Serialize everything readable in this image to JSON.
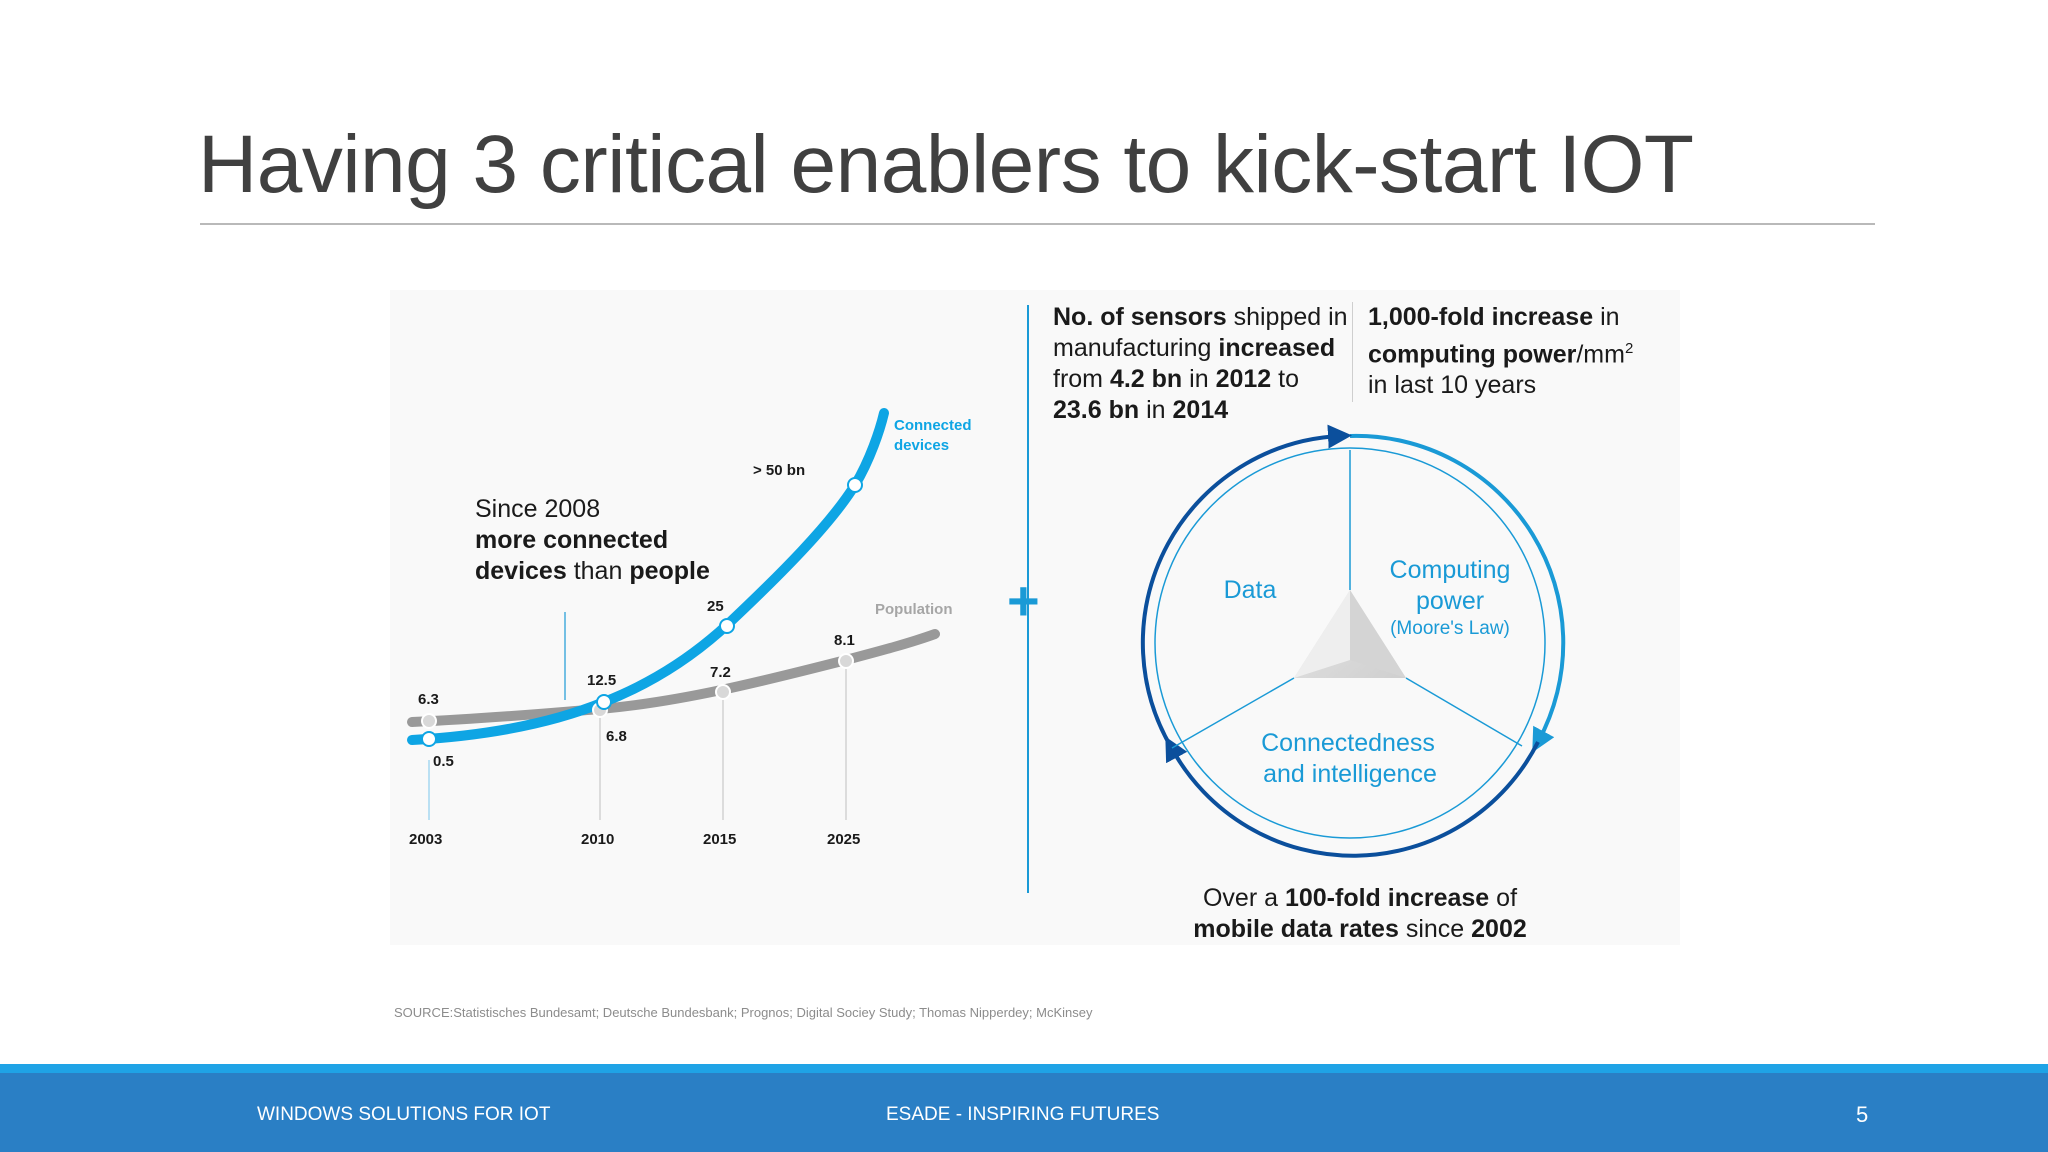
{
  "slide": {
    "title": "Having 3 critical enablers to kick-start IOT"
  },
  "growth_chart": {
    "since_line1": "Since 2008",
    "since_line2": "more connected",
    "since_line3a": "devices",
    "since_line3b": " than ",
    "since_line3c": "people",
    "connected_label_1": "Connected",
    "connected_label_2": "devices",
    "population_label": "Population",
    "over_label": "> 50 bn",
    "connected_values": [
      "0.5",
      "12.5",
      "25"
    ],
    "population_values": [
      "6.3",
      "6.8",
      "7.2",
      "8.1"
    ],
    "years": [
      "2003",
      "2010",
      "2015",
      "2025"
    ],
    "connected_color": "#0ea5e4",
    "population_color": "#999999"
  },
  "chart_data": {
    "type": "line",
    "x": [
      "2003",
      "2010",
      "2015",
      "2025"
    ],
    "series": [
      {
        "name": "Connected devices",
        "values": [
          0.5,
          12.5,
          25,
          50
        ]
      },
      {
        "name": "Population",
        "values": [
          6.3,
          6.8,
          7.2,
          8.1
        ]
      }
    ]
  },
  "plus_sign": "+",
  "sensors": {
    "b1": "No. of sensors",
    "t1": " shipped in manufacturing ",
    "b2": "increased",
    "t2": " from ",
    "b3": "4.2 bn",
    "t3": " in ",
    "b4": "2012",
    "t4": " to ",
    "b5": "23.6 bn",
    "t5": " in ",
    "b6": "2014"
  },
  "computing": {
    "b1": "1,000-fold increase",
    "t1": " in ",
    "b2": "computing power",
    "t2": "/mm",
    "sup": "2",
    "t3": " in last 10 years"
  },
  "circle": {
    "data_label": "Data",
    "computing_label_1": "Computing",
    "computing_label_2": "power",
    "computing_label_3": "(Moore's Law)",
    "connectedness_label_1": "Connectedness",
    "connectedness_label_2": "and intelligence",
    "accent_color": "#1a9ad6",
    "dark_color": "#0b4f9c"
  },
  "mobile": {
    "t1": "Over a ",
    "b1": "100-fold increase",
    "t2": " of",
    "b2": "mobile data rates",
    "t3": " since ",
    "b3": "2002"
  },
  "source": "SOURCE:Statistisches Bundesamt; Deutsche Bundesbank; Prognos; Digital Sociey Study; Thomas Nipperdey; McKinsey",
  "footer": {
    "left": "WINDOWS SOLUTIONS FOR IOT",
    "center": "ESADE - INSPIRING FUTURES",
    "page_number": "5"
  }
}
